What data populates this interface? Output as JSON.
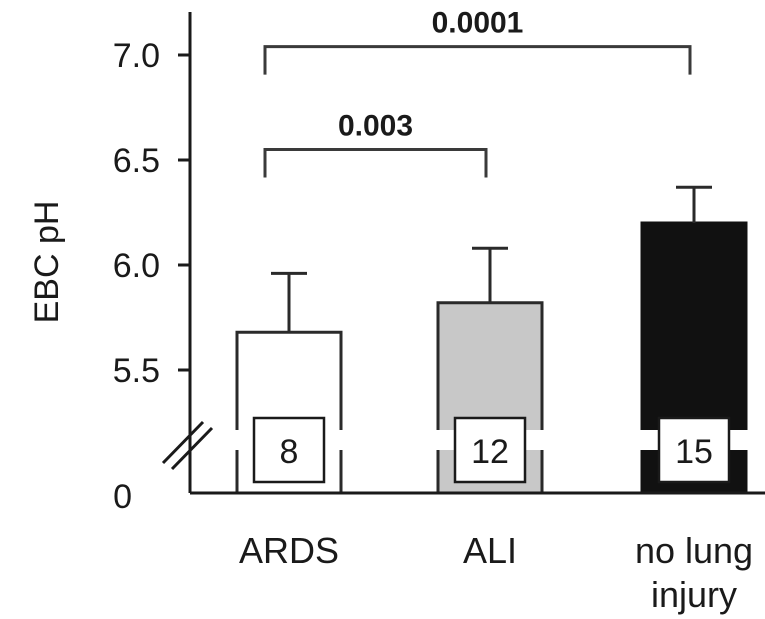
{
  "chart_data": {
    "type": "bar",
    "ylabel": "EBC pH",
    "categories": [
      "ARDS",
      "ALI",
      "no lung injury"
    ],
    "category_lines": [
      [
        "ARDS"
      ],
      [
        "ALI"
      ],
      [
        "no lung",
        "injury"
      ]
    ],
    "values": [
      5.68,
      5.82,
      6.2
    ],
    "error_upper": [
      5.96,
      6.08,
      6.37
    ],
    "n_labels": [
      "8",
      "12",
      "15"
    ],
    "bar_colors": [
      "#ffffff",
      "#c8c8c8",
      "#111111"
    ],
    "ylim": [
      5.0,
      7.2
    ],
    "axis_break": true,
    "yticks": [
      5.5,
      6.0,
      6.5,
      7.0
    ],
    "ytick_labels": [
      "5.5",
      "6.0",
      "6.5",
      "7.0"
    ],
    "y_zero_label": "0",
    "comparisons": [
      {
        "from": 0,
        "to": 1,
        "label": "0.003",
        "y": 6.55
      },
      {
        "from": 0,
        "to": 2,
        "label": "0.0001",
        "y": 7.04
      }
    ]
  }
}
